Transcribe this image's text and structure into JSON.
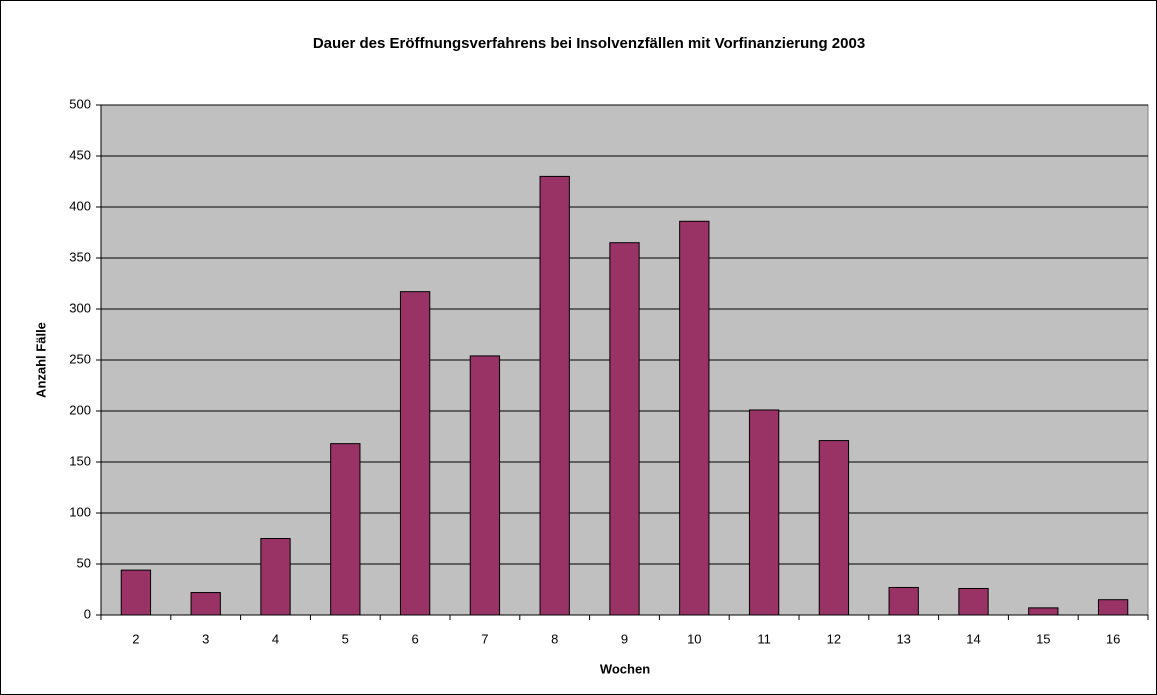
{
  "chart_data": {
    "type": "bar",
    "title": "Dauer des Eröffnungsverfahrens bei Insolvenzfällen mit Vorfinanzierung 2003",
    "xlabel": "Wochen",
    "ylabel": "Anzahl Fälle",
    "categories": [
      "2",
      "3",
      "4",
      "5",
      "6",
      "7",
      "8",
      "9",
      "10",
      "11",
      "12",
      "13",
      "14",
      "15",
      "16"
    ],
    "values": [
      44,
      22,
      75,
      168,
      317,
      254,
      430,
      365,
      386,
      201,
      171,
      27,
      26,
      7,
      15
    ],
    "color": "#993366",
    "ylim": [
      0,
      500
    ],
    "yticks": [
      0,
      50,
      100,
      150,
      200,
      250,
      300,
      350,
      400,
      450,
      500
    ],
    "grid": true
  }
}
